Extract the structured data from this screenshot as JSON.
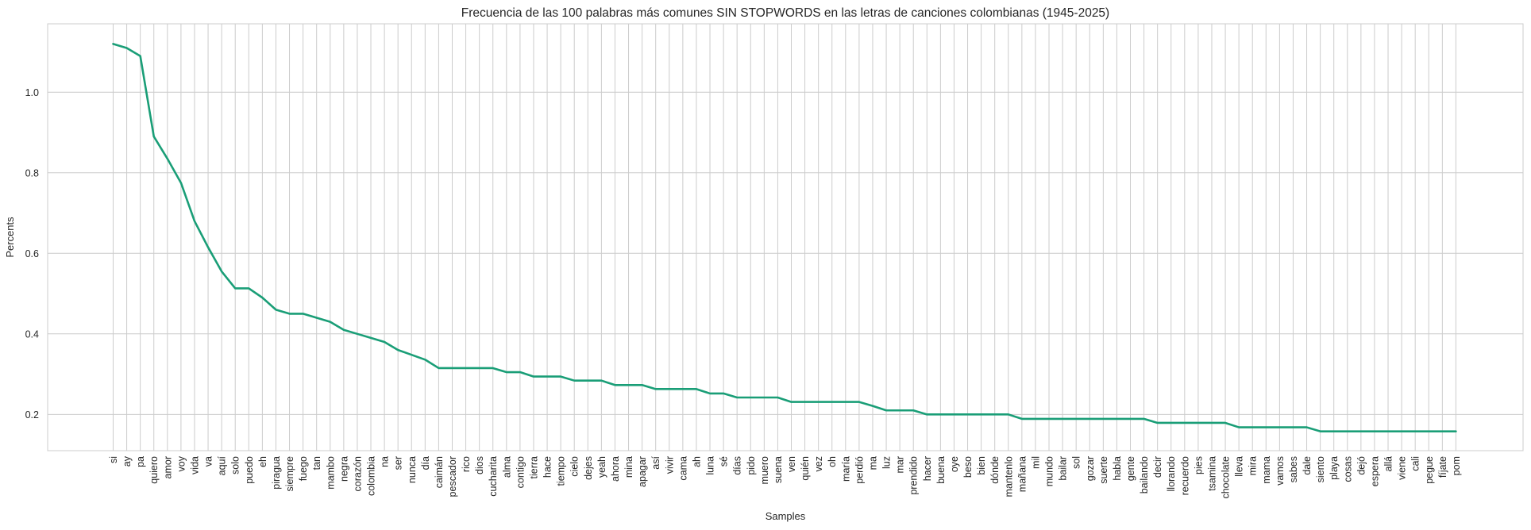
{
  "chart_data": {
    "type": "line",
    "title": "Frecuencia de las 100 palabras más comunes SIN STOPWORDS en las letras de canciones colombianas (1945-2025)",
    "xlabel": "Samples",
    "ylabel": "Percents",
    "ylim": [
      0.11,
      1.17
    ],
    "yticks": [
      "0.2",
      "0.4",
      "0.6",
      "0.8",
      "1.0"
    ],
    "grid": true,
    "line_color": "#1a9e77",
    "grid_color": "#cccccc",
    "categories": [
      "si",
      "ay",
      "pa",
      "quiero",
      "amor",
      "voy",
      "vida",
      "va",
      "aquí",
      "solo",
      "puedo",
      "eh",
      "piragua",
      "siempre",
      "fuego",
      "tan",
      "mambo",
      "negra",
      "corazón",
      "colombia",
      "na",
      "ser",
      "nunca",
      "día",
      "caimán",
      "pescador",
      "rico",
      "dios",
      "cucharita",
      "alma",
      "contigo",
      "tierra",
      "hace",
      "tiempo",
      "cielo",
      "dejes",
      "yeah",
      "ahora",
      "mina",
      "apagar",
      "así",
      "vivir",
      "cama",
      "ah",
      "luna",
      "sé",
      "días",
      "pido",
      "muero",
      "suena",
      "ven",
      "quién",
      "vez",
      "oh",
      "maría",
      "perdió",
      "ma",
      "luz",
      "mar",
      "prendido",
      "hacer",
      "buena",
      "oye",
      "beso",
      "bien",
      "dónde",
      "mantenlo",
      "mañana",
      "mil",
      "mundo",
      "bailar",
      "sol",
      "gozar",
      "suerte",
      "habla",
      "gente",
      "bailando",
      "decir",
      "llorando",
      "recuerdo",
      "pies",
      "tsamina",
      "chocolate",
      "lleva",
      "mira",
      "mama",
      "vamos",
      "sabes",
      "dale",
      "siento",
      "playa",
      "cosas",
      "dejó",
      "espera",
      "allá",
      "viene",
      "cali",
      "pegue",
      "fíjate",
      "pom"
    ],
    "values": [
      1.12,
      1.11,
      1.09,
      0.89,
      0.835,
      0.775,
      0.68,
      0.615,
      0.555,
      0.513,
      0.513,
      0.49,
      0.46,
      0.45,
      0.45,
      0.44,
      0.43,
      0.41,
      0.4,
      0.39,
      0.38,
      0.36,
      0.348,
      0.336,
      0.315,
      0.315,
      0.315,
      0.315,
      0.315,
      0.305,
      0.305,
      0.294,
      0.294,
      0.294,
      0.284,
      0.284,
      0.284,
      0.273,
      0.273,
      0.273,
      0.263,
      0.263,
      0.263,
      0.263,
      0.252,
      0.252,
      0.242,
      0.242,
      0.242,
      0.242,
      0.231,
      0.231,
      0.231,
      0.231,
      0.231,
      0.231,
      0.221,
      0.21,
      0.21,
      0.21,
      0.2,
      0.2,
      0.2,
      0.2,
      0.2,
      0.2,
      0.2,
      0.189,
      0.189,
      0.189,
      0.189,
      0.189,
      0.189,
      0.189,
      0.189,
      0.189,
      0.189,
      0.179,
      0.179,
      0.179,
      0.179,
      0.179,
      0.179,
      0.168,
      0.168,
      0.168,
      0.168,
      0.168,
      0.168,
      0.158,
      0.158,
      0.158,
      0.158,
      0.158,
      0.158,
      0.158,
      0.158,
      0.158,
      0.158,
      0.158
    ]
  }
}
